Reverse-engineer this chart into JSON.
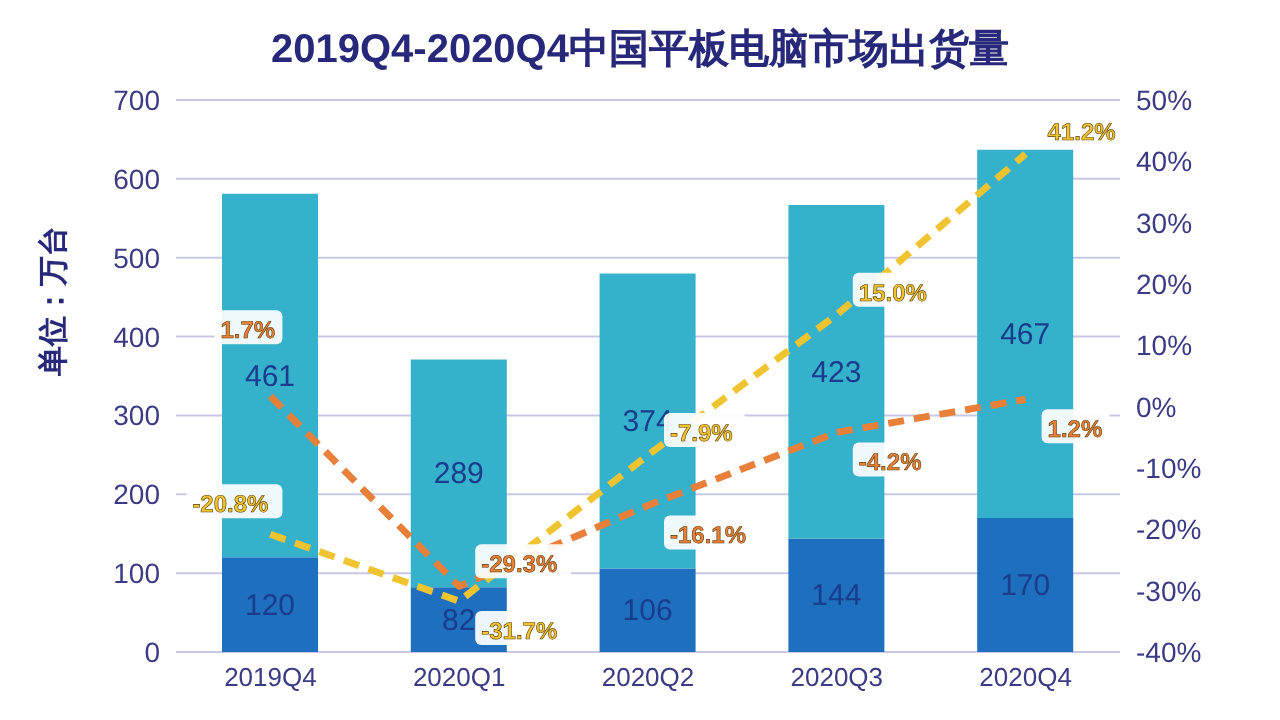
{
  "chart_data": {
    "type": "bar",
    "title": "2019Q4-2020Q4中国平板电脑市场出货量",
    "ylabel": "单位：万台",
    "categories": [
      "2019Q4",
      "2020Q1",
      "2020Q2",
      "2020Q3",
      "2020Q4"
    ],
    "stacked": true,
    "grid": "y",
    "legend": false,
    "marker": "none",
    "line_style": "dashed",
    "ylim": [
      0,
      700
    ],
    "yticks": [
      0,
      100,
      200,
      300,
      400,
      500,
      600,
      700
    ],
    "y2lim": [
      -40,
      50
    ],
    "y2ticks": [
      {
        "value": -40,
        "label": "-40%"
      },
      {
        "value": -30,
        "label": "-30%"
      },
      {
        "value": -20,
        "label": "-20%"
      },
      {
        "value": -10,
        "label": "-10%"
      },
      {
        "value": 0,
        "label": "0%"
      },
      {
        "value": 10,
        "label": "10%"
      },
      {
        "value": 20,
        "label": "20%"
      },
      {
        "value": 30,
        "label": "30%"
      },
      {
        "value": 40,
        "label": "40%"
      },
      {
        "value": 50,
        "label": "50%"
      }
    ],
    "series": [
      {
        "color": "#1f6fbf",
        "values": [
          120,
          82,
          106,
          144,
          170
        ],
        "value_labels": [
          "120",
          "82",
          "106",
          "144",
          "170"
        ]
      },
      {
        "color": "#36b1cc",
        "values": [
          461,
          289,
          374,
          423,
          467
        ],
        "value_labels": [
          "461",
          "289",
          "374",
          "423",
          "467"
        ]
      },
      {
        "type": "line",
        "axis": "y2",
        "color": "#e8803a",
        "values": [
          1.7,
          -29.3,
          -16.1,
          -4.2,
          1.2
        ],
        "value_labels": [
          "1.7%",
          "-29.3%",
          "-16.1%",
          "-4.2%",
          "1.2%"
        ]
      },
      {
        "type": "line",
        "axis": "y2",
        "color": "#f0c431",
        "values": [
          -20.8,
          -31.7,
          -7.9,
          15.0,
          41.2
        ],
        "value_labels": [
          "-20.8%",
          "-31.7%",
          "-7.9%",
          "15.0%",
          "41.2%"
        ]
      }
    ]
  }
}
